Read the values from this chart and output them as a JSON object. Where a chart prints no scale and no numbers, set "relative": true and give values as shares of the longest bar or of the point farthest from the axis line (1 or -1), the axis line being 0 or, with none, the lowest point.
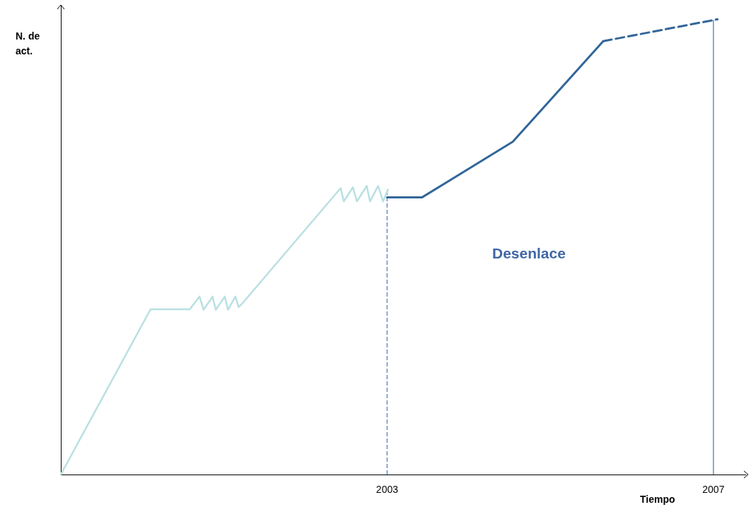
{
  "chart_data": {
    "type": "line",
    "relative": true,
    "ylabel": "N. de act.",
    "xlabel": "Tiempo",
    "annotations": [
      "Desenlace"
    ],
    "xlim": [
      1999,
      2007.4
    ],
    "xticks": [
      2003,
      2007
    ],
    "grid": false,
    "marker": "none",
    "series": [
      {
        "color": "#b9e0e2",
        "x": [
          1999,
          2000.1,
          2000.58,
          2000.7,
          2000.75,
          2000.86,
          2000.9,
          2001.01,
          2001.05,
          2001.14,
          2001.18,
          2001.23,
          2002.43,
          2002.47,
          2002.58,
          2002.63,
          2002.75,
          2002.79,
          2002.89,
          2002.95,
          2003.01
        ],
        "values": [
          0,
          0.363,
          0.363,
          0.391,
          0.362,
          0.391,
          0.362,
          0.391,
          0.362,
          0.391,
          0.368,
          0.377,
          0.629,
          0.6,
          0.631,
          0.6,
          0.634,
          0.6,
          0.634,
          0.6,
          0.626
        ]
      },
      {
        "color": "#336699",
        "x": [
          2003,
          2003.43,
          2004.54,
          2005.65
        ],
        "values": [
          0.609,
          0.609,
          0.731,
          0.952
        ]
      },
      {
        "color": "#336699",
        "line_style": "dashed",
        "x": [
          2005.65,
          2007.05
        ],
        "values": [
          0.952,
          1
        ]
      }
    ],
    "ref_lines": [
      {
        "axis": "x",
        "value": 2003,
        "color": "#6a8fbf",
        "line_style": "dashed"
      },
      {
        "axis": "x",
        "value": 2007,
        "color": "#6a8fbf",
        "line_style": "solid"
      }
    ]
  }
}
